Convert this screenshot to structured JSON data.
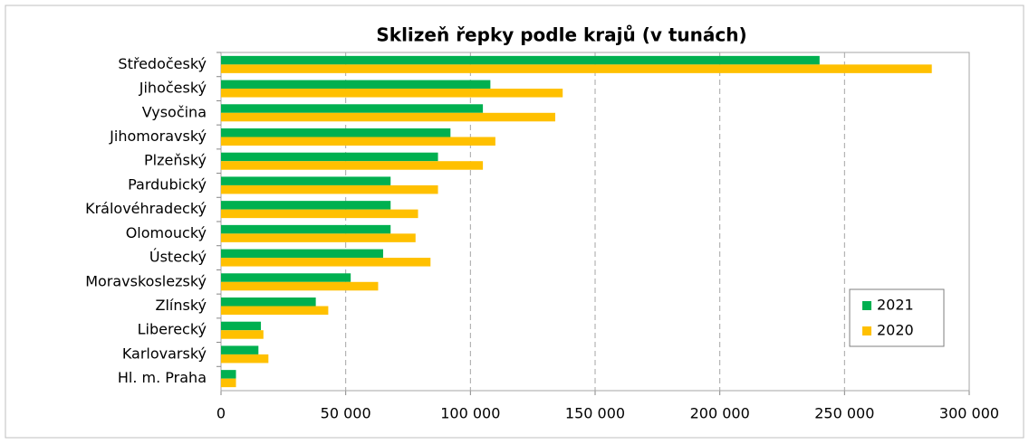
{
  "chart_data": {
    "type": "bar",
    "orientation": "horizontal",
    "title": "Sklizeň řepky podle krajů (v tunách)",
    "categories": [
      "Středočeský",
      "Jihočeský",
      "Vysočina",
      "Jihomoravský",
      "Plzeňský",
      "Pardubický",
      "Královéhradecký",
      "Olomoucký",
      "Ústecký",
      "Moravskoslezský",
      "Zlínský",
      "Liberecký",
      "Karlovarský",
      "Hl. m. Praha"
    ],
    "series": [
      {
        "name": "2021",
        "color": "#00b050",
        "values": [
          240000,
          108000,
          105000,
          92000,
          87000,
          68000,
          68000,
          68000,
          65000,
          52000,
          38000,
          16000,
          15000,
          6000
        ]
      },
      {
        "name": "2020",
        "color": "#ffc000",
        "values": [
          285000,
          137000,
          134000,
          110000,
          105000,
          87000,
          79000,
          78000,
          84000,
          63000,
          43000,
          17000,
          19000,
          6000
        ]
      }
    ],
    "xlim": [
      0,
      300000
    ],
    "xticks": [
      0,
      {
        "value": 50000,
        "label": "50 000"
      },
      {
        "value": 100000,
        "label": "100 000"
      },
      {
        "value": 150000,
        "label": "150 000"
      },
      {
        "value": 200000,
        "label": "200 000"
      },
      {
        "value": 250000,
        "label": "250 000"
      },
      {
        "value": 300000,
        "label": "300 000"
      }
    ],
    "grid": true,
    "legend": "lower right"
  }
}
